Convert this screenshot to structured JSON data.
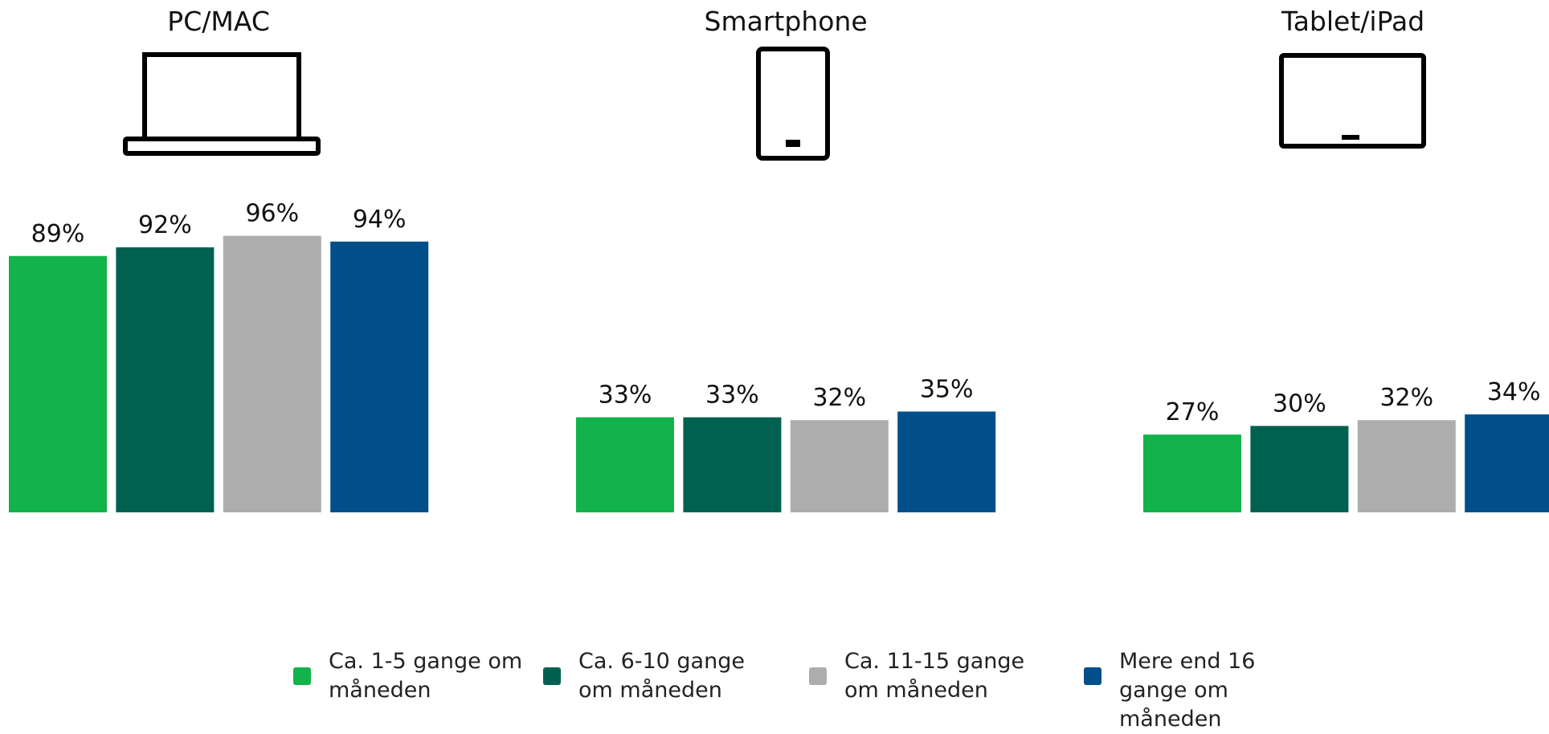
{
  "chart_data": {
    "type": "bar",
    "categories": [
      "PC/MAC",
      "Smartphone",
      "Tablet/iPad"
    ],
    "series": [
      {
        "name": "Ca. 1-5 gange om måneden",
        "color": "#12b34b",
        "values": [
          89,
          33,
          27
        ],
        "value_labels": [
          "89%",
          "33%",
          "27%"
        ]
      },
      {
        "name": "Ca. 6-10 gange om måneden",
        "color": "#006151",
        "values": [
          92,
          33,
          30
        ],
        "value_labels": [
          "92%",
          "33%",
          "30%"
        ]
      },
      {
        "name": "Ca. 11-15 gange om måneden",
        "color": "#adadad",
        "values": [
          96,
          32,
          32
        ],
        "value_labels": [
          "96%",
          "32%",
          "32%"
        ]
      },
      {
        "name": "Mere end 16 gange om måneden",
        "color": "#004f8a",
        "values": [
          94,
          35,
          34
        ],
        "value_labels": [
          "94%",
          "35%",
          "34%"
        ]
      }
    ]
  }
}
